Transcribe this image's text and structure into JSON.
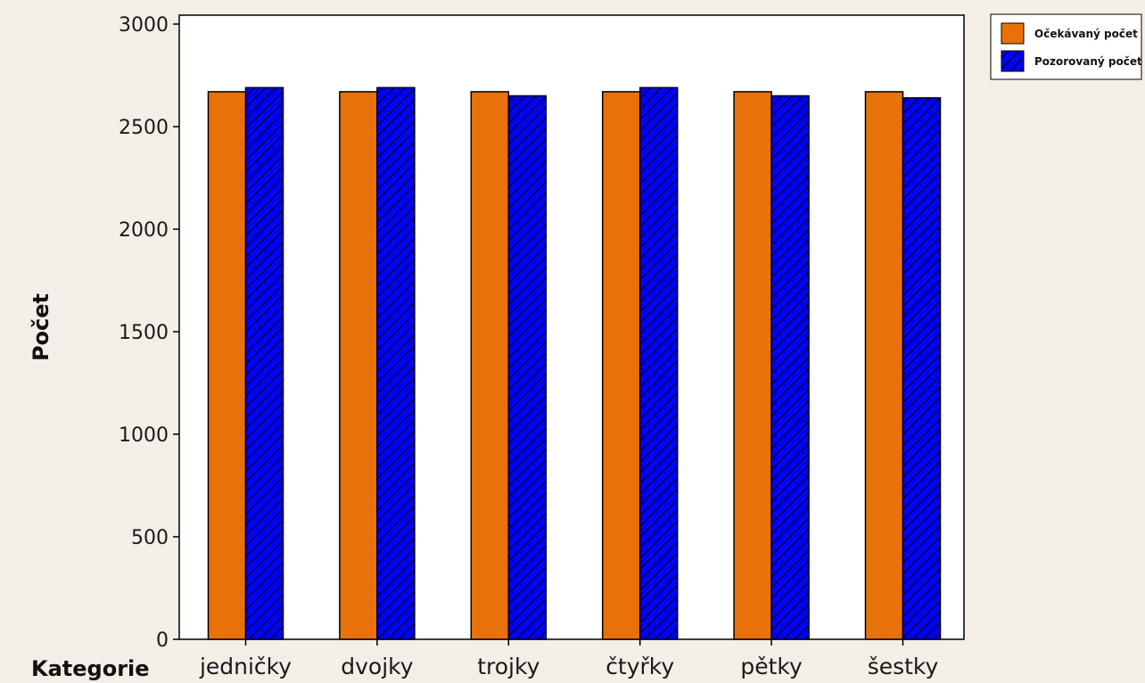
{
  "chart_data": {
    "type": "bar",
    "title": "",
    "xlabel": "Kategorie",
    "ylabel": "Počet",
    "categories": [
      "jedničky",
      "dvojky",
      "trojky",
      "čtyřky",
      "pětky",
      "šestky"
    ],
    "series": [
      {
        "name": "Očekávaný počet",
        "values": [
          2670,
          2670,
          2670,
          2670,
          2670,
          2670
        ],
        "color": "#e8710a",
        "pattern": "solid"
      },
      {
        "name": "Pozorovaný počet",
        "values": [
          2690,
          2690,
          2650,
          2690,
          2650,
          2640
        ],
        "color": "#0000ff",
        "pattern": "hatched"
      }
    ],
    "yticks": [
      0,
      500,
      1000,
      1500,
      2000,
      2500,
      3000
    ],
    "ylim": [
      0,
      3000
    ],
    "grid": false,
    "legend": "top-right"
  }
}
